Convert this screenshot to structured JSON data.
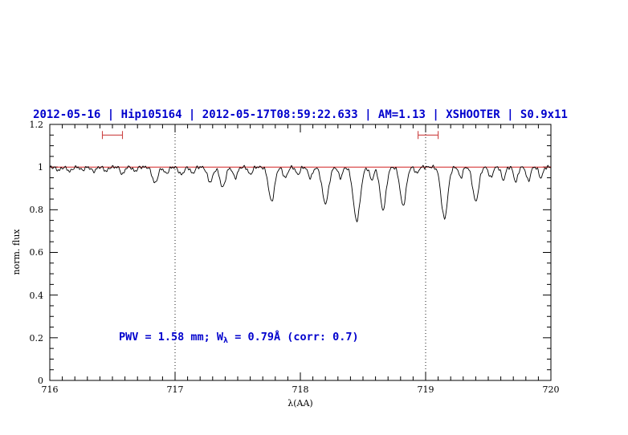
{
  "title": {
    "text": "2012-05-16 | Hip105164 | 2012-05-17T08:59:22.633 | AM=1.13 | XSHOOTER | S0.9x11"
  },
  "annotation": {
    "prefix": "PWV = 1.58 mm; W",
    "subscript": "λ",
    "suffix": " = 0.79Å (corr: 0.7)"
  },
  "axes": {
    "xlabel": "λ(AA)",
    "ylabel": "norm. flux",
    "x_tick_labels": [
      "716",
      "717",
      "718",
      "719",
      "720"
    ],
    "y_tick_labels": [
      "0",
      "0.2",
      "0.4",
      "0.6",
      "0.8",
      "1",
      "1.2"
    ]
  },
  "colors": {
    "title": "#0000cd",
    "annotation": "#0000cd",
    "continuum_line": "#cc0000",
    "marker": "#cc4444",
    "spectrum": "#000000",
    "dotted_line": "#000000"
  },
  "chart_data": {
    "type": "line",
    "title": "2012-05-16 | Hip105164 | 2012-05-17T08:59:22.633 | AM=1.13 | XSHOOTER | S0.9x11",
    "xlabel": "λ(AA)",
    "ylabel": "norm. flux",
    "xlim": [
      716,
      720
    ],
    "ylim": [
      0,
      1.2
    ],
    "x_ticks": [
      716,
      717,
      718,
      719,
      720
    ],
    "y_ticks": [
      0,
      0.2,
      0.4,
      0.6,
      0.8,
      1.0,
      1.2
    ],
    "grid": false,
    "continuum": 1.0,
    "x_step": 0.004,
    "noise_amplitude": 0.004,
    "reference_lines": {
      "horizontal_red": 1.0,
      "vertical_dotted": [
        717,
        719
      ]
    },
    "markers": [
      {
        "x_start": 716.42,
        "x_end": 716.58,
        "y": 1.15
      },
      {
        "x_start": 718.94,
        "x_end": 719.1,
        "y": 1.15
      }
    ],
    "absorption_lines": [
      [
        716.07,
        0.015,
        0.018
      ],
      [
        716.16,
        0.02,
        0.018
      ],
      [
        716.26,
        0.015,
        0.015
      ],
      [
        716.35,
        0.02,
        0.018
      ],
      [
        716.45,
        0.02,
        0.015
      ],
      [
        716.58,
        0.035,
        0.015
      ],
      [
        716.68,
        0.02,
        0.015
      ],
      [
        716.84,
        0.075,
        0.022
      ],
      [
        716.93,
        0.03,
        0.018
      ],
      [
        717.05,
        0.035,
        0.02
      ],
      [
        717.14,
        0.03,
        0.016
      ],
      [
        717.28,
        0.07,
        0.022
      ],
      [
        717.38,
        0.095,
        0.022
      ],
      [
        717.48,
        0.05,
        0.018
      ],
      [
        717.6,
        0.035,
        0.016
      ],
      [
        717.77,
        0.16,
        0.024
      ],
      [
        717.88,
        0.05,
        0.018
      ],
      [
        717.98,
        0.035,
        0.016
      ],
      [
        718.08,
        0.05,
        0.018
      ],
      [
        718.2,
        0.17,
        0.026
      ],
      [
        718.32,
        0.05,
        0.016
      ],
      [
        718.45,
        0.25,
        0.028
      ],
      [
        718.57,
        0.06,
        0.016
      ],
      [
        718.66,
        0.2,
        0.024
      ],
      [
        718.82,
        0.18,
        0.024
      ],
      [
        718.93,
        0.03,
        0.014
      ],
      [
        719.15,
        0.24,
        0.026
      ],
      [
        719.28,
        0.05,
        0.015
      ],
      [
        719.4,
        0.16,
        0.024
      ],
      [
        719.52,
        0.05,
        0.016
      ],
      [
        719.62,
        0.06,
        0.016
      ],
      [
        719.72,
        0.07,
        0.016
      ],
      [
        719.82,
        0.065,
        0.016
      ],
      [
        719.92,
        0.05,
        0.016
      ]
    ],
    "annotation": "PWV = 1.58 mm; W_λ = 0.79Å (corr: 0.7)"
  }
}
